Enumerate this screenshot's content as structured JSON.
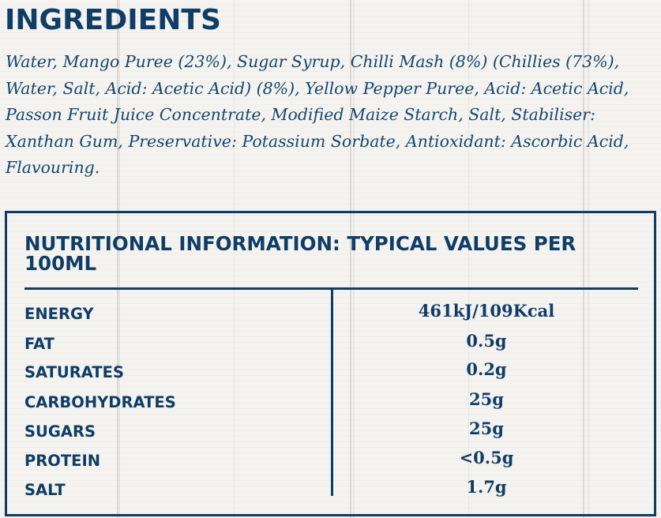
{
  "ingredients": {
    "heading": "INGREDIENTS",
    "text": "Water, Mango Puree (23%), Sugar Syrup, Chilli Mash (8%) (Chillies (73%), Water, Salt, Acid: Acetic Acid) (8%), Yellow Pepper Puree, Acid: Acetic Acid, Passon Fruit Juice Concentrate, Modified Maize Starch, Salt, Stabiliser: Xanthan Gum, Preservative: Potassium Sorbate, Antioxidant: Ascorbic Acid, Flavouring."
  },
  "nutrition": {
    "title": "NUTRITIONAL INFORMATION: TYPICAL VALUES PER 100ML",
    "rows": [
      {
        "label": "ENERGY",
        "value": "461kJ/109Kcal"
      },
      {
        "label": "FAT",
        "value": "0.5g"
      },
      {
        "label": "SATURATES",
        "value": "0.2g"
      },
      {
        "label": "CARBOHYDRATES",
        "value": "25g"
      },
      {
        "label": "SUGARS",
        "value": "25g"
      },
      {
        "label": "PROTEIN",
        "value": "<0.5g"
      },
      {
        "label": "SALT",
        "value": "1.7g"
      }
    ]
  },
  "colors": {
    "text_primary": "#0f3d66",
    "background": "#f4f3f0"
  }
}
